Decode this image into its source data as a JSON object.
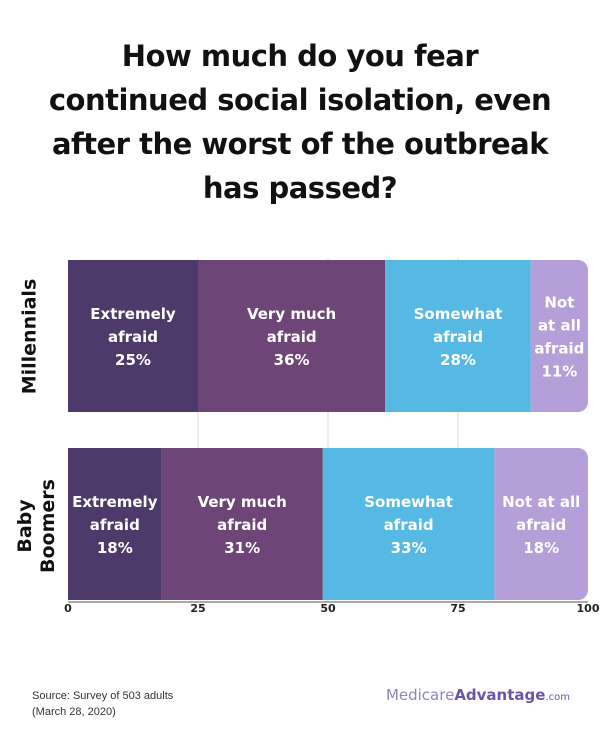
{
  "title_lines": [
    "How much do you fear",
    "continued social isolation, even",
    "after the worst of the outbreak",
    "has passed?"
  ],
  "chart_data": {
    "type": "bar",
    "orientation": "horizontal",
    "stacked": true,
    "categories": [
      {
        "label_lines": [
          "Millennials"
        ]
      },
      {
        "label_lines": [
          "Baby",
          "Boomers"
        ]
      }
    ],
    "series": [
      {
        "label_lines": [
          "Extremely",
          "afraid"
        ],
        "color": "#4e3a6a"
      },
      {
        "label_lines": [
          "Very much",
          "afraid"
        ],
        "color": "#6e4577"
      },
      {
        "label_lines": [
          "Somewhat",
          "afraid"
        ],
        "color": "#55b9e3"
      },
      {
        "label_lines": [
          "Not at all",
          "afraid"
        ],
        "color": "#b49fd9"
      }
    ],
    "segment_labels": [
      [
        [
          "Extremely",
          "afraid",
          "25%"
        ],
        [
          "Very much",
          "afraid",
          "36%"
        ],
        [
          "Somewhat",
          "afraid",
          "28%"
        ],
        [
          "Not",
          "at all",
          "afraid",
          "11%"
        ]
      ],
      [
        [
          "Extremely",
          "afraid",
          "18%"
        ],
        [
          "Very much",
          "afraid",
          "31%"
        ],
        [
          "Somewhat",
          "afraid",
          "33%"
        ],
        [
          "Not at all",
          "afraid",
          "18%"
        ]
      ]
    ],
    "values": [
      [
        25,
        36,
        28,
        11
      ],
      [
        18,
        31,
        33,
        18
      ]
    ],
    "xlim": [
      0,
      100
    ],
    "xticks": [
      "0",
      "25",
      "50",
      "75",
      "100"
    ],
    "grid": true
  },
  "footer": {
    "source_lines": [
      "Source: Survey of 503 adults",
      "(March 28, 2020)"
    ],
    "brand_part1": "Medicare",
    "brand_part2": "Advantage",
    "brand_part3": ".com"
  }
}
